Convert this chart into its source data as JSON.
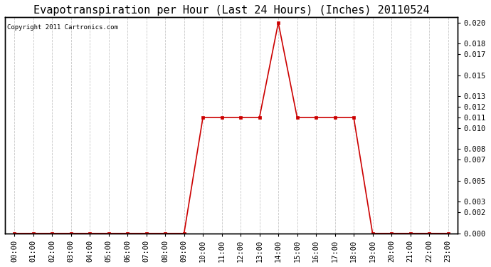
{
  "title": "Evapotranspiration per Hour (Last 24 Hours) (Inches) 20110524",
  "copyright": "Copyright 2011 Cartronics.com",
  "hours": [
    "00:00",
    "01:00",
    "02:00",
    "03:00",
    "04:00",
    "05:00",
    "06:00",
    "07:00",
    "08:00",
    "09:00",
    "10:00",
    "11:00",
    "12:00",
    "13:00",
    "14:00",
    "15:00",
    "16:00",
    "17:00",
    "18:00",
    "19:00",
    "20:00",
    "21:00",
    "22:00",
    "23:00"
  ],
  "values": [
    0.0,
    0.0,
    0.0,
    0.0,
    0.0,
    0.0,
    0.0,
    0.0,
    0.0,
    0.0,
    0.011,
    0.011,
    0.011,
    0.011,
    0.02,
    0.011,
    0.011,
    0.011,
    0.011,
    0.0,
    0.0,
    0.0,
    0.0,
    0.0
  ],
  "line_color": "#cc0000",
  "marker": "s",
  "marker_size": 3,
  "background_color": "#ffffff",
  "plot_bg_color": "#ffffff",
  "grid_color": "#c8c8c8",
  "title_fontsize": 11,
  "copyright_fontsize": 6.5,
  "tick_fontsize": 7.5,
  "ylim": [
    0.0,
    0.0205
  ],
  "yticks": [
    0.0,
    0.002,
    0.003,
    0.005,
    0.007,
    0.008,
    0.01,
    0.011,
    0.012,
    0.013,
    0.015,
    0.017,
    0.018,
    0.02
  ]
}
